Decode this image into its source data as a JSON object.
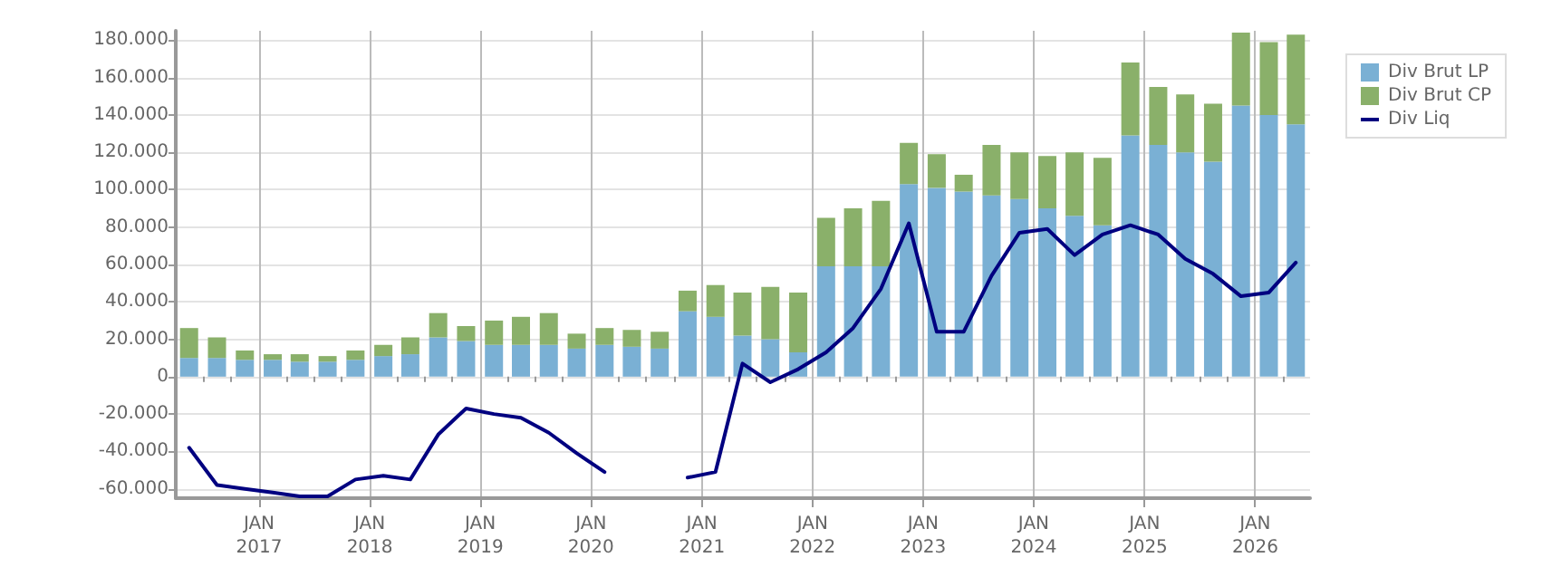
{
  "chart_data": {
    "type": "bar",
    "stacked": true,
    "x": [
      "2016-05-15",
      "2016-08-15",
      "2016-11-15",
      "2017-02-15",
      "2017-05-15",
      "2017-08-15",
      "2017-11-15",
      "2018-02-15",
      "2018-05-15",
      "2018-08-15",
      "2018-11-15",
      "2019-02-15",
      "2019-05-15",
      "2019-08-15",
      "2019-11-15",
      "2020-02-15",
      "2020-05-15",
      "2020-08-15",
      "2020-11-15",
      "2021-02-15",
      "2021-05-15",
      "2021-08-15",
      "2021-11-15",
      "2022-02-15",
      "2022-05-15",
      "2022-08-15",
      "2022-11-15",
      "2023-02-15",
      "2023-05-15",
      "2023-08-15",
      "2023-11-15",
      "2024-02-15",
      "2024-05-15",
      "2024-08-15",
      "2024-11-15",
      "2025-02-15",
      "2025-05-15",
      "2025-08-15",
      "2025-11-15",
      "2026-02-15",
      "2026-05-15"
    ],
    "series": [
      {
        "name": "Div Brut LP",
        "color": "#7ab0d4",
        "values": [
          10000,
          10000,
          9000,
          9000,
          8000,
          8000,
          9000,
          11000,
          12000,
          21000,
          19000,
          17000,
          17000,
          17000,
          15000,
          17000,
          16000,
          15000,
          35000,
          32000,
          22000,
          20000,
          13000,
          59000,
          59000,
          59000,
          103000,
          101000,
          99000,
          97000,
          95000,
          90000,
          86000,
          81000,
          129000,
          124000,
          120000,
          115000,
          145000,
          140000,
          135000
        ]
      },
      {
        "name": "Div Brut CP",
        "color": "#8ab06a",
        "values": [
          16000,
          11000,
          5000,
          3000,
          4000,
          3000,
          5000,
          6000,
          9000,
          13000,
          8000,
          13000,
          15000,
          17000,
          8000,
          9000,
          9000,
          9000,
          11000,
          17000,
          23000,
          28000,
          32000,
          26000,
          31000,
          35000,
          22000,
          18000,
          9000,
          27000,
          25000,
          28000,
          34000,
          36000,
          39000,
          31000,
          31000,
          31000,
          39000,
          39000,
          48000
        ]
      },
      {
        "name": "Div Liq",
        "type": "line",
        "color": "#000080",
        "values": [
          -38000,
          -58000,
          -60000,
          -62000,
          -64000,
          -64000,
          -55000,
          -53000,
          -55000,
          -31000,
          -17000,
          -20000,
          -22000,
          -30000,
          -41000,
          -51000,
          null,
          null,
          -54000,
          -51000,
          7000,
          -3000,
          4000,
          13000,
          26000,
          47000,
          82000,
          24000,
          24000,
          54000,
          77000,
          79000,
          65000,
          76000,
          81000,
          76000,
          63000,
          55000,
          43000,
          45000,
          61000
        ]
      }
    ],
    "xlim": [
      "2016-04-01",
      "2026-07-01"
    ],
    "xticks": [
      {
        "value": "2016-07-01",
        "label": null
      },
      {
        "value": "2016-10-01",
        "label": null
      },
      {
        "value": "2017-01-01",
        "label": "JAN\n2017"
      },
      {
        "value": "2017-04-01",
        "label": null
      },
      {
        "value": "2017-07-01",
        "label": null
      },
      {
        "value": "2017-10-01",
        "label": null
      },
      {
        "value": "2018-01-01",
        "label": "JAN\n2018"
      },
      {
        "value": "2018-04-01",
        "label": null
      },
      {
        "value": "2018-07-01",
        "label": null
      },
      {
        "value": "2018-10-01",
        "label": null
      },
      {
        "value": "2019-01-01",
        "label": "JAN\n2019"
      },
      {
        "value": "2019-04-01",
        "label": null
      },
      {
        "value": "2019-07-01",
        "label": null
      },
      {
        "value": "2019-10-01",
        "label": null
      },
      {
        "value": "2020-01-01",
        "label": "JAN\n2020"
      },
      {
        "value": "2020-04-01",
        "label": null
      },
      {
        "value": "2020-07-01",
        "label": null
      },
      {
        "value": "2020-10-01",
        "label": null
      },
      {
        "value": "2021-01-01",
        "label": "JAN\n2021"
      },
      {
        "value": "2021-04-01",
        "label": null
      },
      {
        "value": "2021-07-01",
        "label": null
      },
      {
        "value": "2021-10-01",
        "label": null
      },
      {
        "value": "2022-01-01",
        "label": "JAN\n2022"
      },
      {
        "value": "2022-04-01",
        "label": null
      },
      {
        "value": "2022-07-01",
        "label": null
      },
      {
        "value": "2022-10-01",
        "label": null
      },
      {
        "value": "2023-01-01",
        "label": "JAN\n2023"
      },
      {
        "value": "2023-04-01",
        "label": null
      },
      {
        "value": "2023-07-01",
        "label": null
      },
      {
        "value": "2023-10-01",
        "label": null
      },
      {
        "value": "2024-01-01",
        "label": "JAN\n2024"
      },
      {
        "value": "2024-04-01",
        "label": null
      },
      {
        "value": "2024-07-01",
        "label": null
      },
      {
        "value": "2024-10-01",
        "label": null
      },
      {
        "value": "2025-01-01",
        "label": "JAN\n2025"
      },
      {
        "value": "2025-04-01",
        "label": null
      },
      {
        "value": "2025-07-01",
        "label": null
      },
      {
        "value": "2025-10-01",
        "label": null
      },
      {
        "value": "2026-01-01",
        "label": "JAN\n2026"
      },
      {
        "value": "2026-04-01",
        "label": null
      }
    ],
    "ylim": [
      -65000,
      185000
    ],
    "yticks": [
      {
        "value": -60000,
        "label": "-60.000"
      },
      {
        "value": -40000,
        "label": "-40.000"
      },
      {
        "value": -20000,
        "label": "-20.000"
      },
      {
        "value": 0,
        "label": "0"
      },
      {
        "value": 20000,
        "label": "20.000"
      },
      {
        "value": 40000,
        "label": "40.000"
      },
      {
        "value": 60000,
        "label": "60.000"
      },
      {
        "value": 80000,
        "label": "80.000"
      },
      {
        "value": 100000,
        "label": "100.000"
      },
      {
        "value": 120000,
        "label": "120.000"
      },
      {
        "value": 140000,
        "label": "140.000"
      },
      {
        "value": 160000,
        "label": "160.000"
      },
      {
        "value": 180000,
        "label": "180.000"
      }
    ],
    "grid": true,
    "legend": "top right",
    "marker": "none",
    "line_style": "solid"
  }
}
